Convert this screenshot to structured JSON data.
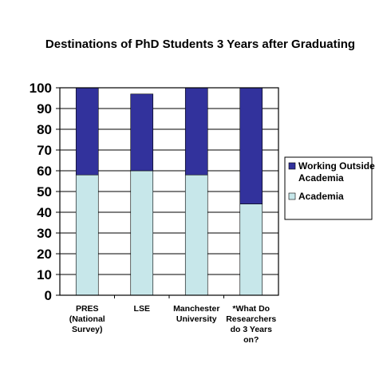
{
  "chart_data": {
    "type": "bar",
    "stacked": true,
    "title": "Destinations of PhD Students 3 Years after Graduating",
    "categories": [
      [
        "PRES",
        "(National",
        "Survey)"
      ],
      [
        "LSE"
      ],
      [
        "Manchester",
        "University"
      ],
      [
        "*What Do",
        "Researchers",
        "do 3 Years",
        "on?"
      ]
    ],
    "series": [
      {
        "name": "Academia",
        "color": "#c7e7ea",
        "values": [
          58,
          60,
          58,
          44
        ]
      },
      {
        "name": "Working Outside Academia",
        "color": "#32329c",
        "values": [
          42,
          37,
          42,
          56
        ]
      }
    ],
    "ylim": [
      0,
      100
    ],
    "yticks": [
      0,
      10,
      20,
      30,
      40,
      50,
      60,
      70,
      80,
      90,
      100
    ],
    "grid": true,
    "legend": {
      "placement": "right",
      "entries": [
        {
          "label_lines": [
            "Working Outside",
            "Academia"
          ],
          "color": "#32329c"
        },
        {
          "label_lines": [
            "Academia"
          ],
          "color": "#c7e7ea"
        }
      ]
    }
  }
}
